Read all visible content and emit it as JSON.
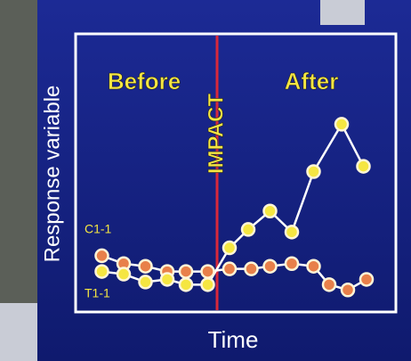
{
  "chart_data": {
    "type": "line",
    "x_label": "Time",
    "y_label": "Response variable",
    "annotations": {
      "before": "Before",
      "after": "After",
      "impact": "IMPACT"
    },
    "impact_x": 44,
    "impact_color": "#d8283a",
    "xlim": [
      0,
      100
    ],
    "ylim": [
      0,
      100
    ],
    "series": [
      {
        "name": "C1-1",
        "color": "#e8804a",
        "x": [
          7,
          14,
          21,
          28,
          34,
          41,
          48,
          55,
          61,
          68,
          75,
          80,
          86,
          92
        ],
        "values": [
          18,
          15,
          14,
          12,
          12,
          12,
          13,
          13,
          14,
          15,
          14,
          7,
          5,
          9
        ]
      },
      {
        "name": "T1-1",
        "color": "#f5e642",
        "x": [
          7,
          14,
          21,
          28,
          34,
          41,
          48,
          54,
          61,
          68,
          75,
          84,
          91
        ],
        "values": [
          12,
          11,
          8,
          9,
          7,
          7,
          21,
          28,
          35,
          27,
          50,
          68,
          52
        ]
      }
    ]
  }
}
